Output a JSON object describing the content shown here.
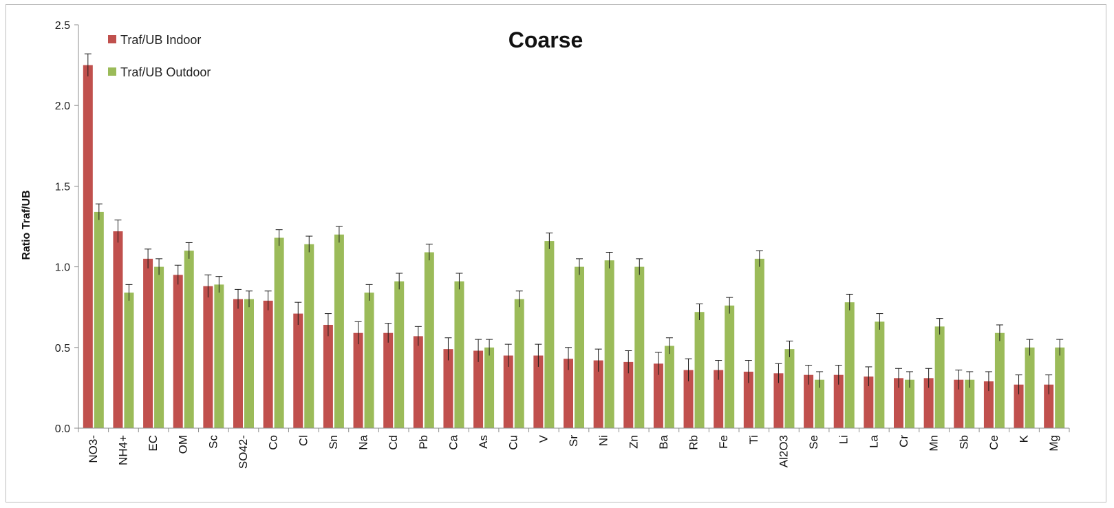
{
  "colors": {
    "indoor": "#c0504d",
    "outdoor": "#9bbb59",
    "axis": "#8c8c8c",
    "error": "#1a1a1a"
  },
  "chart_data": {
    "type": "bar",
    "title": "Coarse",
    "xlabel": "",
    "ylabel": "Ratio Traf/UB",
    "ylim": [
      0,
      2.5
    ],
    "yticks": [
      "0.0",
      "0.5",
      "1.0",
      "1.5",
      "2.0",
      "2.5"
    ],
    "ytick_values": [
      0,
      0.5,
      1.0,
      1.5,
      2.0,
      2.5
    ],
    "grid": false,
    "legend_position": "top-left",
    "categories": [
      "NO3-",
      "NH4+",
      "EC",
      "OM",
      "Sc",
      "SO42-",
      "Co",
      "Cl",
      "Sn",
      "Na",
      "Cd",
      "Pb",
      "Ca",
      "As",
      "Cu",
      "V",
      "Sr",
      "Ni",
      "Zn",
      "Ba",
      "Rb",
      "Fe",
      "Ti",
      "Al2O3",
      "Se",
      "Li",
      "La",
      "Cr",
      "Mn",
      "Sb",
      "Ce",
      "K",
      "Mg"
    ],
    "series": [
      {
        "name": "Traf/UB Indoor",
        "values": [
          2.25,
          1.22,
          1.05,
          0.95,
          0.88,
          0.8,
          0.79,
          0.71,
          0.64,
          0.59,
          0.59,
          0.57,
          0.49,
          0.48,
          0.45,
          0.45,
          0.43,
          0.42,
          0.41,
          0.4,
          0.36,
          0.36,
          0.35,
          0.34,
          0.33,
          0.33,
          0.32,
          0.31,
          0.31,
          0.3,
          0.29,
          0.27,
          0.27
        ],
        "errors": [
          0.07,
          0.07,
          0.06,
          0.06,
          0.07,
          0.06,
          0.06,
          0.07,
          0.07,
          0.07,
          0.06,
          0.06,
          0.07,
          0.07,
          0.07,
          0.07,
          0.07,
          0.07,
          0.07,
          0.07,
          0.07,
          0.06,
          0.07,
          0.06,
          0.06,
          0.06,
          0.06,
          0.06,
          0.06,
          0.06,
          0.06,
          0.06,
          0.06
        ]
      },
      {
        "name": "Traf/UB Outdoor",
        "values": [
          1.34,
          0.84,
          1.0,
          1.1,
          0.89,
          0.8,
          1.18,
          1.14,
          1.2,
          0.84,
          0.91,
          1.09,
          0.91,
          0.5,
          0.8,
          1.16,
          1.0,
          1.04,
          1.0,
          0.51,
          0.72,
          0.76,
          1.05,
          0.49,
          0.3,
          0.78,
          0.66,
          0.3,
          0.63,
          0.3,
          0.59,
          0.5,
          0.5
        ],
        "errors": [
          0.05,
          0.05,
          0.05,
          0.05,
          0.05,
          0.05,
          0.05,
          0.05,
          0.05,
          0.05,
          0.05,
          0.05,
          0.05,
          0.05,
          0.05,
          0.05,
          0.05,
          0.05,
          0.05,
          0.05,
          0.05,
          0.05,
          0.05,
          0.05,
          0.05,
          0.05,
          0.05,
          0.05,
          0.05,
          0.05,
          0.05,
          0.05,
          0.05
        ]
      }
    ]
  }
}
